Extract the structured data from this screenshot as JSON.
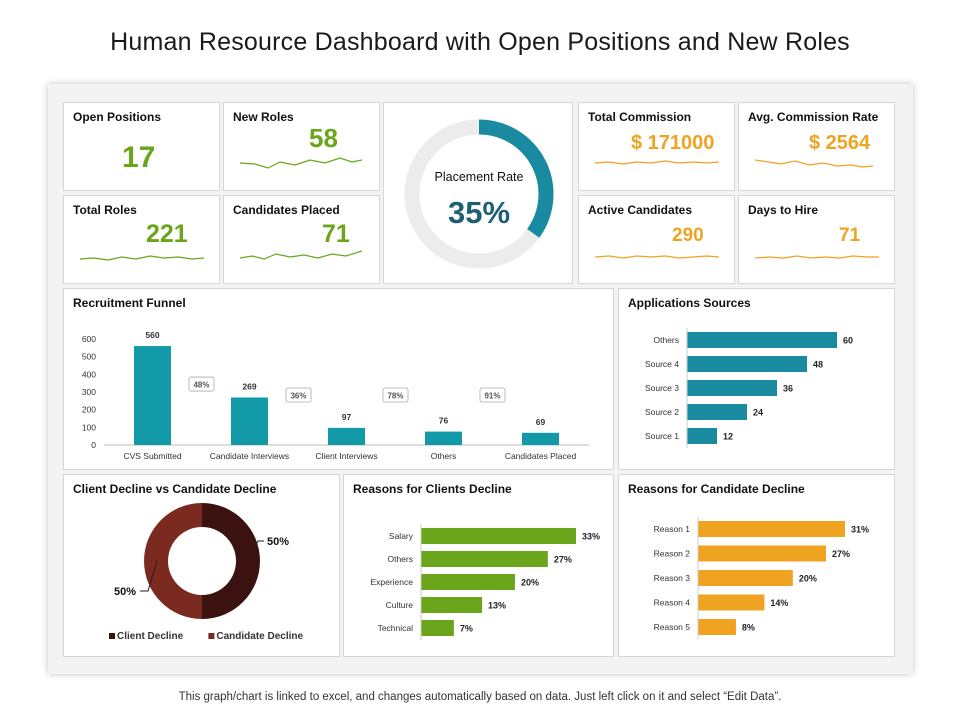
{
  "title": "Human Resource Dashboard with Open Positions and New Roles",
  "footer": "This graph/chart is linked to excel, and changes automatically based on data. Just left click on it and select “Edit Data”.",
  "colors": {
    "green": "#6aa51c",
    "orange": "#f0a321",
    "teal": "#1a8aa0",
    "funnel": "#139aa8",
    "dark_teal": "#1e5f74",
    "dark_brown": "#3b1210",
    "brown_red": "#7b2a20"
  },
  "kpis": {
    "open_positions": {
      "label": "Open Positions",
      "value": "17"
    },
    "new_roles": {
      "label": "New Roles",
      "value": "58"
    },
    "total_roles": {
      "label": "Total Roles",
      "value": "221"
    },
    "candidates_placed": {
      "label": "Candidates Placed",
      "value": "71"
    },
    "total_commission": {
      "label": "Total Commission",
      "value": "$ 171000"
    },
    "avg_commission_rate": {
      "label": "Avg. Commission Rate",
      "value": "$ 2564"
    },
    "active_candidates": {
      "label": "Active Candidates",
      "value": "290"
    },
    "days_to_hire": {
      "label": "Days to Hire",
      "value": "71"
    }
  },
  "placement_rate": {
    "label": "Placement Rate",
    "value": "35%",
    "fraction": 0.35
  },
  "chart_data": [
    {
      "id": "recruitment_funnel",
      "type": "bar",
      "title": "Recruitment Funnel",
      "categories": [
        "CVS Submitted",
        "Candidate Interviews",
        "Client Interviews",
        "Others",
        "Candidates Placed"
      ],
      "values": [
        560,
        269,
        97,
        76,
        69
      ],
      "value_labels": [
        "560",
        "269",
        "97",
        "76",
        "69"
      ],
      "conversion_labels": [
        "48%",
        "36%",
        "78%",
        "91%"
      ],
      "yticks": [
        "0",
        "100",
        "200",
        "300",
        "400",
        "500",
        "600"
      ],
      "ylim": [
        0,
        600
      ]
    },
    {
      "id": "applications_sources",
      "type": "bar",
      "orientation": "horizontal",
      "title": "Applications Sources",
      "categories": [
        "Others",
        "Source 4",
        "Source 3",
        "Source 2",
        "Source 1"
      ],
      "values": [
        60,
        48,
        36,
        24,
        12
      ],
      "value_labels": [
        "60",
        "48",
        "36",
        "24",
        "12"
      ]
    },
    {
      "id": "client_vs_candidate_decline",
      "type": "pie",
      "title": "Client Decline vs Candidate Decline",
      "categories": [
        "Client Decline",
        "Candidate Decline"
      ],
      "values": [
        50,
        50
      ],
      "value_labels": [
        "50%",
        "50%"
      ]
    },
    {
      "id": "reasons_clients_decline",
      "type": "bar",
      "orientation": "horizontal",
      "title": "Reasons for Clients Decline",
      "categories": [
        "Salary",
        "Others",
        "Experience",
        "Culture",
        "Technical"
      ],
      "values": [
        33,
        27,
        20,
        13,
        7
      ],
      "value_labels": [
        "33%",
        "27%",
        "20%",
        "13%",
        "7%"
      ]
    },
    {
      "id": "reasons_candidate_decline",
      "type": "bar",
      "orientation": "horizontal",
      "title": "Reasons for Candidate Decline",
      "categories": [
        "Reason 1",
        "Reason 2",
        "Reason 3",
        "Reason 4",
        "Reason 5"
      ],
      "values": [
        31,
        27,
        20,
        14,
        8
      ],
      "value_labels": [
        "31%",
        "27%",
        "20%",
        "14%",
        "8%"
      ]
    }
  ]
}
